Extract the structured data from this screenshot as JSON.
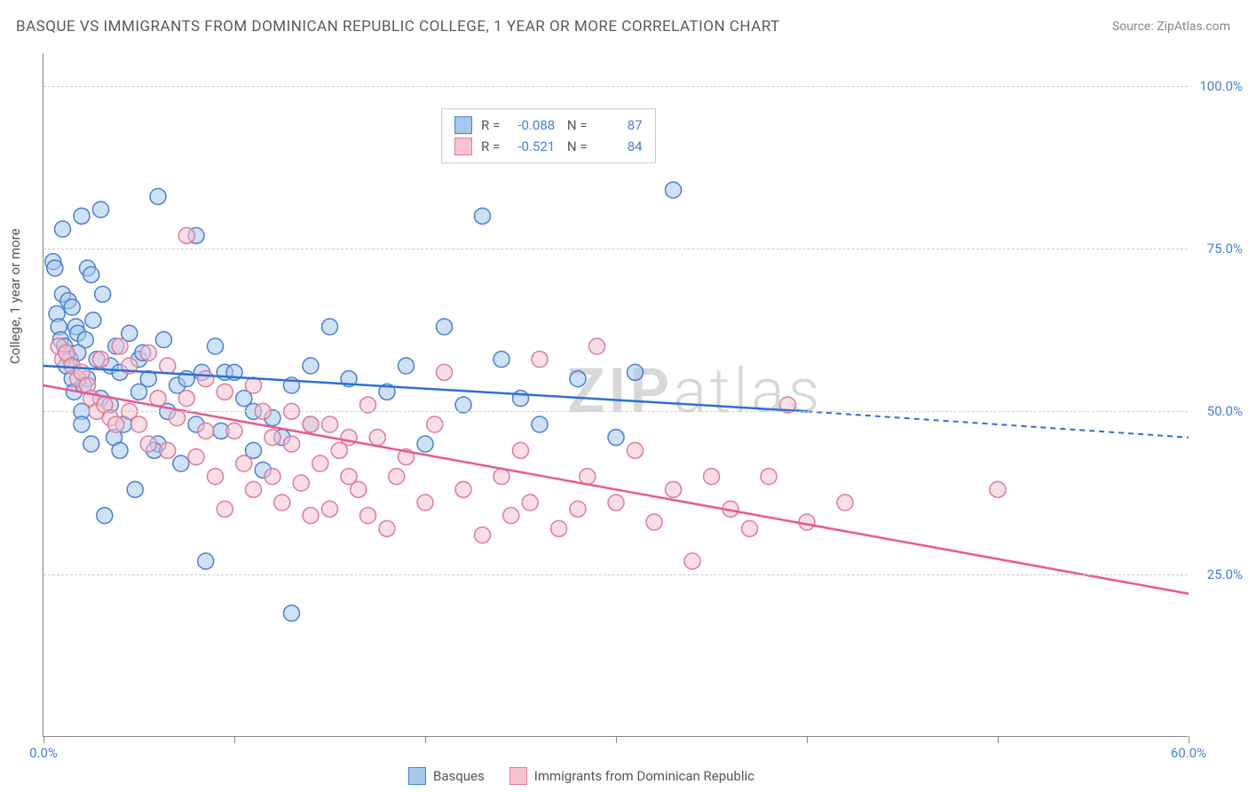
{
  "title": "BASQUE VS IMMIGRANTS FROM DOMINICAN REPUBLIC COLLEGE, 1 YEAR OR MORE CORRELATION CHART",
  "source": "Source: ZipAtlas.com",
  "watermark": "ZIPatlas",
  "chart": {
    "type": "scatter",
    "y_axis_title": "College, 1 year or more",
    "xlim": [
      0,
      60
    ],
    "ylim": [
      0,
      105
    ],
    "x_ticks": [
      0,
      10,
      20,
      30,
      40,
      50,
      60
    ],
    "x_tick_labels": {
      "0": "0.0%",
      "60": "60.0%"
    },
    "y_ticks": [
      25,
      50,
      75,
      100
    ],
    "y_tick_labels": {
      "25": "25.0%",
      "50": "50.0%",
      "75": "75.0%",
      "100": "100.0%"
    },
    "background_color": "#ffffff",
    "grid_color": "#cccccc",
    "axis_color": "#888888",
    "legend_text_color": "#555555",
    "value_text_color": "#4a7fd8",
    "marker_radius": 9,
    "marker_opacity": 0.55,
    "series": [
      {
        "name": "Basques",
        "fill_color": "#a7c8ed",
        "stroke_color": "#4a7fd8",
        "line_color": "#2e6fd6",
        "r_value": "-0.088",
        "n_value": "87",
        "trend": {
          "x1": 0,
          "y1": 57,
          "x2_solid": 40,
          "y2_solid": 50,
          "x2": 60,
          "y2": 46
        },
        "points": [
          [
            0.5,
            73
          ],
          [
            0.6,
            72
          ],
          [
            0.7,
            65
          ],
          [
            0.8,
            63
          ],
          [
            0.9,
            61
          ],
          [
            1,
            78
          ],
          [
            1,
            68
          ],
          [
            1.1,
            60
          ],
          [
            1.2,
            59
          ],
          [
            1.2,
            57
          ],
          [
            1.3,
            67
          ],
          [
            1.4,
            58
          ],
          [
            1.5,
            55
          ],
          [
            1.5,
            66
          ],
          [
            1.6,
            53
          ],
          [
            1.7,
            63
          ],
          [
            1.8,
            62
          ],
          [
            2,
            80
          ],
          [
            2,
            50
          ],
          [
            2,
            48
          ],
          [
            2.2,
            61
          ],
          [
            2.3,
            72
          ],
          [
            2.3,
            55
          ],
          [
            2.5,
            45
          ],
          [
            2.5,
            71
          ],
          [
            2.8,
            58
          ],
          [
            3,
            81
          ],
          [
            3,
            52
          ],
          [
            3.2,
            34
          ],
          [
            3.5,
            57
          ],
          [
            3.5,
            51
          ],
          [
            3.7,
            46
          ],
          [
            4,
            44
          ],
          [
            4,
            56
          ],
          [
            4.5,
            62
          ],
          [
            4.8,
            38
          ],
          [
            5,
            53
          ],
          [
            5,
            58
          ],
          [
            5.5,
            55
          ],
          [
            6,
            45
          ],
          [
            6,
            83
          ],
          [
            6.5,
            50
          ],
          [
            7,
            54
          ],
          [
            7.5,
            55
          ],
          [
            8,
            77
          ],
          [
            8,
            48
          ],
          [
            8.5,
            27
          ],
          [
            9,
            60
          ],
          [
            9.5,
            56
          ],
          [
            10,
            56
          ],
          [
            10.5,
            52
          ],
          [
            11,
            50
          ],
          [
            11.5,
            41
          ],
          [
            12,
            49
          ],
          [
            12.5,
            46
          ],
          [
            13,
            19
          ],
          [
            14,
            57
          ],
          [
            15,
            63
          ],
          [
            16,
            55
          ],
          [
            18,
            53
          ],
          [
            19,
            57
          ],
          [
            20,
            45
          ],
          [
            21,
            63
          ],
          [
            22,
            51
          ],
          [
            23,
            80
          ],
          [
            24,
            58
          ],
          [
            25,
            52
          ],
          [
            26,
            48
          ],
          [
            28,
            55
          ],
          [
            30,
            46
          ],
          [
            31,
            56
          ],
          [
            33,
            84
          ],
          [
            1.8,
            59
          ],
          [
            2.1,
            54
          ],
          [
            2.6,
            64
          ],
          [
            3.1,
            68
          ],
          [
            3.8,
            60
          ],
          [
            4.2,
            48
          ],
          [
            5.2,
            59
          ],
          [
            5.8,
            44
          ],
          [
            6.3,
            61
          ],
          [
            7.2,
            42
          ],
          [
            8.3,
            56
          ],
          [
            9.3,
            47
          ],
          [
            11,
            44
          ],
          [
            13,
            54
          ],
          [
            14,
            48
          ]
        ]
      },
      {
        "name": "Immigrants from Dominican Republic",
        "fill_color": "#f4c4d0",
        "stroke_color": "#e07a9a",
        "line_color": "#e85a8a",
        "r_value": "-0.521",
        "n_value": "84",
        "trend": {
          "x1": 0,
          "y1": 54,
          "x2_solid": 60,
          "y2_solid": 22,
          "x2": 60,
          "y2": 22
        },
        "points": [
          [
            0.8,
            60
          ],
          [
            1,
            58
          ],
          [
            1.2,
            59
          ],
          [
            1.5,
            57
          ],
          [
            1.8,
            55
          ],
          [
            2,
            56
          ],
          [
            2.3,
            54
          ],
          [
            2.5,
            52
          ],
          [
            2.8,
            50
          ],
          [
            3,
            58
          ],
          [
            3.2,
            51
          ],
          [
            3.5,
            49
          ],
          [
            3.8,
            48
          ],
          [
            4,
            60
          ],
          [
            4.5,
            50
          ],
          [
            5,
            48
          ],
          [
            5.5,
            45
          ],
          [
            6,
            52
          ],
          [
            6.5,
            44
          ],
          [
            7,
            49
          ],
          [
            7.5,
            77
          ],
          [
            8,
            43
          ],
          [
            8.5,
            55
          ],
          [
            9,
            40
          ],
          [
            9.5,
            35
          ],
          [
            10,
            47
          ],
          [
            10.5,
            42
          ],
          [
            11,
            38
          ],
          [
            11.5,
            50
          ],
          [
            12,
            40
          ],
          [
            12.5,
            36
          ],
          [
            13,
            45
          ],
          [
            13.5,
            39
          ],
          [
            14,
            48
          ],
          [
            14.5,
            42
          ],
          [
            15,
            35
          ],
          [
            15.5,
            44
          ],
          [
            16,
            40
          ],
          [
            16.5,
            38
          ],
          [
            17,
            51
          ],
          [
            17.5,
            46
          ],
          [
            18,
            32
          ],
          [
            18.5,
            40
          ],
          [
            19,
            43
          ],
          [
            20,
            36
          ],
          [
            20.5,
            48
          ],
          [
            21,
            56
          ],
          [
            22,
            38
          ],
          [
            23,
            31
          ],
          [
            24,
            40
          ],
          [
            24.5,
            34
          ],
          [
            25,
            44
          ],
          [
            25.5,
            36
          ],
          [
            26,
            58
          ],
          [
            27,
            32
          ],
          [
            28,
            35
          ],
          [
            28.5,
            40
          ],
          [
            29,
            60
          ],
          [
            30,
            36
          ],
          [
            31,
            44
          ],
          [
            32,
            33
          ],
          [
            33,
            38
          ],
          [
            34,
            27
          ],
          [
            35,
            40
          ],
          [
            36,
            35
          ],
          [
            37,
            32
          ],
          [
            38,
            40
          ],
          [
            39,
            51
          ],
          [
            40,
            33
          ],
          [
            42,
            36
          ],
          [
            50,
            38
          ],
          [
            4.5,
            57
          ],
          [
            5.5,
            59
          ],
          [
            6.5,
            57
          ],
          [
            7.5,
            52
          ],
          [
            8.5,
            47
          ],
          [
            9.5,
            53
          ],
          [
            11,
            54
          ],
          [
            12,
            46
          ],
          [
            13,
            50
          ],
          [
            14,
            34
          ],
          [
            15,
            48
          ],
          [
            16,
            46
          ],
          [
            17,
            34
          ]
        ]
      }
    ]
  }
}
